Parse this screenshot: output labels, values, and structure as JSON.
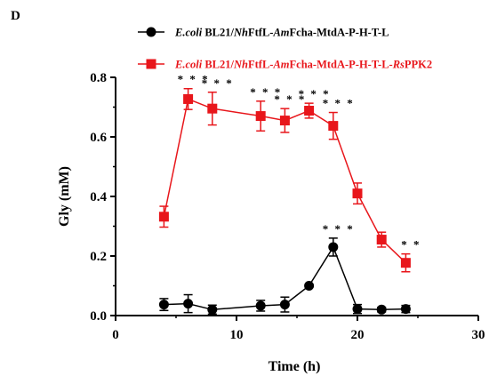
{
  "panel_label": "D",
  "colors": {
    "black_series": "#000000",
    "red_series": "#e8161b",
    "axis": "#000000"
  },
  "chart_data": {
    "type": "line",
    "xlabel": "Time (h)",
    "ylabel": "Gly (mM)",
    "xlim": [
      0,
      30
    ],
    "ylim": [
      0,
      0.8
    ],
    "x_ticks": [
      "0",
      "10",
      "20",
      "30"
    ],
    "y_ticks": [
      "0.0",
      "0.2",
      "0.4",
      "0.6",
      "0.8"
    ],
    "legend_placement": "top-center",
    "series": [
      {
        "name": "E.coli BL21/NhFtfL-AmFcha-MtdA-P-H-T-L",
        "name_parts": [
          {
            "t": "E.coli",
            "i": true
          },
          {
            "t": " BL21/",
            "i": false
          },
          {
            "t": "Nh",
            "i": true
          },
          {
            "t": "FtfL-",
            "i": false
          },
          {
            "t": "Am",
            "i": true
          },
          {
            "t": "Fcha-MtdA-P-H-T-L",
            "i": false
          }
        ],
        "color": "#000000",
        "marker": "circle",
        "x": [
          4,
          6,
          8,
          12,
          14,
          16,
          18,
          20,
          22,
          24
        ],
        "y": [
          0.037,
          0.04,
          0.02,
          0.033,
          0.037,
          0.1,
          0.23,
          0.022,
          0.02,
          0.022
        ],
        "err": [
          0.02,
          0.03,
          0.015,
          0.018,
          0.025,
          0.005,
          0.03,
          0.015,
          0.008,
          0.012
        ]
      },
      {
        "name": "E.coli BL21/NhFtfL-AmFcha-MtdA-P-H-T-L-RsPPK2",
        "name_parts": [
          {
            "t": "E.coli",
            "i": true
          },
          {
            "t": " BL21/",
            "i": false
          },
          {
            "t": "Nh",
            "i": true
          },
          {
            "t": "FtfL-",
            "i": false
          },
          {
            "t": "Am",
            "i": true
          },
          {
            "t": "Fcha-MtdA-P-H-T-L-",
            "i": false
          },
          {
            "t": "Rs",
            "i": true
          },
          {
            "t": "PPK2",
            "i": false
          }
        ],
        "color": "#e8161b",
        "marker": "square",
        "x": [
          4,
          6,
          8,
          12,
          14,
          16,
          18,
          20,
          22,
          24
        ],
        "y": [
          0.332,
          0.727,
          0.695,
          0.67,
          0.655,
          0.688,
          0.637,
          0.41,
          0.255,
          0.177
        ],
        "err": [
          0.035,
          0.035,
          0.055,
          0.05,
          0.04,
          0.025,
          0.045,
          0.035,
          0.025,
          0.03
        ]
      }
    ],
    "annotations": [
      {
        "text": "* * *",
        "x": 6,
        "y": 0.727,
        "series": 1
      },
      {
        "text": "* * *",
        "x": 8,
        "y": 0.695,
        "series": 1
      },
      {
        "text": "* * *",
        "x": 12,
        "y": 0.67,
        "series": 1
      },
      {
        "text": "* * *",
        "x": 14,
        "y": 0.655,
        "series": 1
      },
      {
        "text": "* * *",
        "x": 16,
        "y": 0.688,
        "series": 1
      },
      {
        "text": "* * *",
        "x": 18,
        "y": 0.637,
        "series": 1
      },
      {
        "text": "* * *",
        "x": 18,
        "y": 0.23,
        "series": 0
      },
      {
        "text": "* *",
        "x": 24,
        "y": 0.177,
        "series": 1
      }
    ]
  }
}
